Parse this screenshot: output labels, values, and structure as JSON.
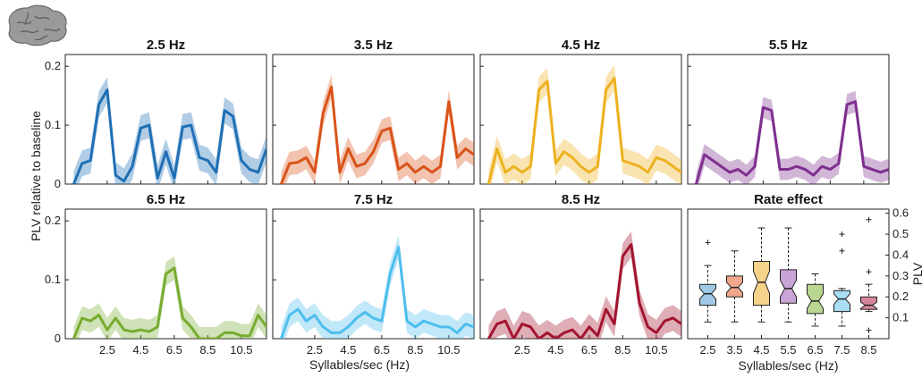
{
  "figure": {
    "ylabel_left": "PLV relative to baseline",
    "xlabel": "Syllables/sec (Hz)",
    "ylabel_right": "PLV",
    "brain_icon": "brain-icon"
  },
  "chart_data": [
    {
      "type": "line",
      "title": "2.5 Hz",
      "color": "#1f6fb5",
      "xlim": [
        0,
        12
      ],
      "ylim": [
        0,
        0.22
      ],
      "yticks": [
        "0",
        "0.1",
        "0.2"
      ],
      "x": [
        0.5,
        1,
        1.5,
        2,
        2.5,
        3,
        3.5,
        4,
        4.5,
        5,
        5.5,
        6,
        6.5,
        7,
        7.5,
        8,
        8.5,
        9,
        9.5,
        10,
        10.5,
        11,
        11.5,
        12
      ],
      "y": [
        0,
        0.035,
        0.04,
        0.135,
        0.16,
        0.015,
        0.005,
        0.03,
        0.095,
        0.1,
        0.01,
        0.055,
        0.01,
        0.097,
        0.1,
        0.045,
        0.04,
        0.02,
        0.125,
        0.115,
        0.04,
        0.025,
        0.02,
        0.06
      ],
      "band": 0.022
    },
    {
      "type": "line",
      "title": "3.5 Hz",
      "color": "#d95319",
      "xlim": [
        0,
        12
      ],
      "ylim": [
        0,
        0.22
      ],
      "x": [
        0.5,
        1,
        1.5,
        2,
        2.5,
        3,
        3.5,
        4,
        4.5,
        5,
        5.5,
        6,
        6.5,
        7,
        7.5,
        8,
        8.5,
        9,
        9.5,
        10,
        10.5,
        11,
        11.5,
        12
      ],
      "y": [
        0,
        0.035,
        0.037,
        0.045,
        0.02,
        0.12,
        0.165,
        0.02,
        0.06,
        0.03,
        0.035,
        0.055,
        0.09,
        0.095,
        0.025,
        0.035,
        0.02,
        0.03,
        0.02,
        0.03,
        0.14,
        0.045,
        0.06,
        0.05
      ],
      "band": 0.02
    },
    {
      "type": "line",
      "title": "4.5 Hz",
      "color": "#edb120",
      "xlim": [
        0,
        12
      ],
      "ylim": [
        0,
        0.22
      ],
      "x": [
        0.5,
        1,
        1.5,
        2,
        2.5,
        3,
        3.5,
        4,
        4.5,
        5,
        5.5,
        6,
        6.5,
        7,
        7.5,
        8,
        8.5,
        9,
        9.5,
        10,
        10.5,
        11,
        11.5,
        12
      ],
      "y": [
        0,
        0.06,
        0.02,
        0.03,
        0.02,
        0.03,
        0.16,
        0.175,
        0.035,
        0.055,
        0.045,
        0.03,
        0.02,
        0.03,
        0.16,
        0.18,
        0.04,
        0.035,
        0.03,
        0.02,
        0.045,
        0.04,
        0.03,
        0.02
      ],
      "band": 0.022
    },
    {
      "type": "line",
      "title": "5.5 Hz",
      "color": "#7e2f8e",
      "xlim": [
        0,
        12
      ],
      "ylim": [
        0,
        0.22
      ],
      "x": [
        0.5,
        1,
        1.5,
        2,
        2.5,
        3,
        3.5,
        4,
        4.5,
        5,
        5.5,
        6,
        6.5,
        7,
        7.5,
        8,
        8.5,
        9,
        9.5,
        10,
        10.5,
        11,
        11.5,
        12
      ],
      "y": [
        0,
        0.05,
        0.04,
        0.03,
        0.02,
        0.025,
        0.015,
        0.03,
        0.13,
        0.125,
        0.025,
        0.025,
        0.03,
        0.025,
        0.015,
        0.03,
        0.025,
        0.035,
        0.135,
        0.14,
        0.03,
        0.025,
        0.02,
        0.025
      ],
      "band": 0.018
    },
    {
      "type": "line",
      "title": "6.5 Hz",
      "color": "#77ac30",
      "xlim": [
        0,
        12
      ],
      "ylim": [
        0,
        0.22
      ],
      "yticks": [
        "0",
        "0.1",
        "0.2"
      ],
      "x": [
        0.5,
        1,
        1.5,
        2,
        2.5,
        3,
        3.5,
        4,
        4.5,
        5,
        5.5,
        6,
        6.5,
        7,
        7.5,
        8,
        8.5,
        9,
        9.5,
        10,
        10.5,
        11,
        11.5,
        12
      ],
      "y": [
        0,
        0.035,
        0.03,
        0.04,
        0.015,
        0.035,
        0.015,
        0.012,
        0.015,
        0.012,
        0.02,
        0.11,
        0.12,
        0.035,
        0.02,
        0,
        0,
        0,
        0.01,
        0.01,
        0.005,
        0.005,
        0.04,
        0.02
      ],
      "band": 0.02
    },
    {
      "type": "line",
      "title": "7.5 Hz",
      "color": "#4dbeee",
      "xlim": [
        0,
        12
      ],
      "ylim": [
        0,
        0.22
      ],
      "x": [
        0.5,
        1,
        1.5,
        2,
        2.5,
        3,
        3.5,
        4,
        4.5,
        5,
        5.5,
        6,
        6.5,
        7,
        7.5,
        8,
        8.5,
        9,
        9.5,
        10,
        10.5,
        11,
        11.5,
        12
      ],
      "y": [
        0,
        0.04,
        0.05,
        0.03,
        0.04,
        0.02,
        0.01,
        0.01,
        0.02,
        0.035,
        0.045,
        0.035,
        0.03,
        0.11,
        0.155,
        0.03,
        0.02,
        0.03,
        0.025,
        0.02,
        0.02,
        0.01,
        0.025,
        0.02
      ],
      "band": 0.02
    },
    {
      "type": "line",
      "title": "8.5 Hz",
      "color": "#a2142f",
      "xlim": [
        0,
        12
      ],
      "ylim": [
        0,
        0.22
      ],
      "x": [
        0.5,
        1,
        1.5,
        2,
        2.5,
        3,
        3.5,
        4,
        4.5,
        5,
        5.5,
        6,
        6.5,
        7,
        7.5,
        8,
        8.5,
        9,
        9.5,
        10,
        10.5,
        11,
        11.5,
        12
      ],
      "y": [
        0,
        0.025,
        0.03,
        0,
        0.025,
        0.02,
        0,
        0.01,
        0,
        0.01,
        0.015,
        0,
        0.02,
        0.005,
        0.05,
        0.025,
        0.14,
        0.16,
        0.06,
        0.02,
        0.01,
        0.03,
        0.035,
        0.025
      ],
      "band": 0.022
    },
    {
      "type": "box",
      "title": "Rate effect",
      "xlabel": "Syllables/sec (Hz)",
      "ylabel": "PLV",
      "ylim": [
        0,
        0.62
      ],
      "yticks": [
        "0.1",
        "0.2",
        "0.3",
        "0.4",
        "0.5",
        "0.6"
      ],
      "categories": [
        "2.5",
        "3.5",
        "4.5",
        "5.5",
        "6.5",
        "7.5",
        "8.5"
      ],
      "boxes": [
        {
          "color": "#9ec8e6",
          "min": 0.08,
          "q1": 0.16,
          "median": 0.215,
          "q3": 0.26,
          "max": 0.35,
          "outliers": [
            0.46
          ]
        },
        {
          "color": "#f0a78b",
          "min": 0.08,
          "q1": 0.2,
          "median": 0.245,
          "q3": 0.3,
          "max": 0.42,
          "outliers": []
        },
        {
          "color": "#f6d38a",
          "min": 0.08,
          "q1": 0.16,
          "median": 0.27,
          "q3": 0.37,
          "max": 0.53,
          "outliers": []
        },
        {
          "color": "#c9a4d6",
          "min": 0.08,
          "q1": 0.17,
          "median": 0.24,
          "q3": 0.33,
          "max": 0.53,
          "outliers": []
        },
        {
          "color": "#b9d790",
          "min": 0.06,
          "q1": 0.12,
          "median": 0.18,
          "q3": 0.26,
          "max": 0.31,
          "outliers": []
        },
        {
          "color": "#a9def5",
          "min": 0.06,
          "q1": 0.13,
          "median": 0.19,
          "q3": 0.23,
          "max": 0.24,
          "outliers": [
            0.42,
            0.5
          ]
        },
        {
          "color": "#d6869a",
          "min": 0.13,
          "q1": 0.14,
          "median": 0.16,
          "q3": 0.2,
          "max": 0.26,
          "outliers": [
            0.04,
            0.32,
            0.57
          ]
        }
      ]
    }
  ]
}
